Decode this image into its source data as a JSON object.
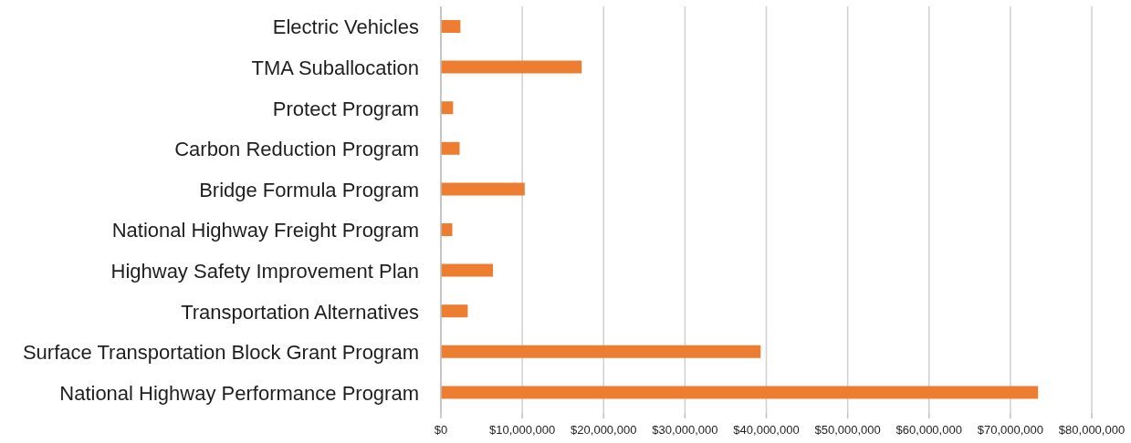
{
  "chart_data": {
    "type": "bar",
    "orientation": "horizontal",
    "categories": [
      "Electric Vehicles",
      "TMA Suballocation",
      "Protect Program",
      "Carbon Reduction Program",
      "Bridge Formula Program",
      "National Highway Freight Program",
      "Highway Safety Improvement Plan",
      "Transportation Alternatives",
      "Surface Transportation Block Grant Program",
      "National Highway Performance Program"
    ],
    "values": [
      2400000,
      17300000,
      1500000,
      2300000,
      10300000,
      1400000,
      6400000,
      3300000,
      39300000,
      73400000
    ],
    "color": "#ed7d31",
    "xlim": [
      0,
      80000000
    ],
    "xticks": [
      {
        "value": 0,
        "label": "$0"
      },
      {
        "value": 10000000,
        "label": "$10,000,000"
      },
      {
        "value": 20000000,
        "label": "$20,000,000"
      },
      {
        "value": 30000000,
        "label": "$30,000,000"
      },
      {
        "value": 40000000,
        "label": "$40,000,000"
      },
      {
        "value": 50000000,
        "label": "$50,000,000"
      },
      {
        "value": 60000000,
        "label": "$60,000,000"
      },
      {
        "value": 70000000,
        "label": "$70,000,000"
      },
      {
        "value": 80000000,
        "label": "$80,000,000"
      }
    ],
    "grid": "x"
  }
}
